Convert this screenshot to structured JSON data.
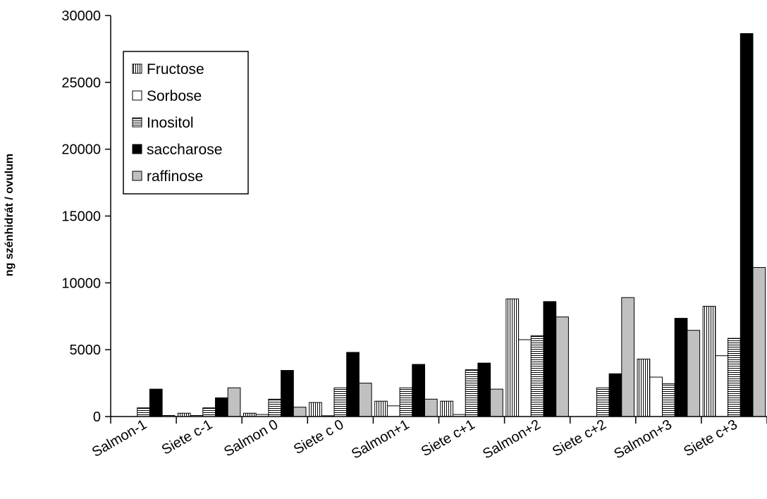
{
  "chart_data": {
    "type": "bar",
    "title": "",
    "xlabel": "",
    "ylabel": "ng szénhidrát / ovulum",
    "ylim": [
      0,
      30000
    ],
    "yticks": [
      0,
      5000,
      10000,
      15000,
      20000,
      25000,
      30000
    ],
    "grid": false,
    "legend_position": "top-left",
    "categories": [
      "Salmon-1",
      "Siete c-1",
      "Salmon 0",
      "Siete c 0",
      "Salmon+1",
      "Siete c+1",
      "Salmon+2",
      "Siete c+2",
      "Salmon+3",
      "Siete c+3"
    ],
    "series": [
      {
        "name": "Fructose",
        "pattern": "vertical-lines",
        "color": "#ffffff",
        "values": [
          0,
          250,
          250,
          1050,
          1150,
          1150,
          8800,
          0,
          4300,
          8250
        ]
      },
      {
        "name": "Sorbose",
        "pattern": "solid",
        "color": "#ffffff",
        "values": [
          0,
          80,
          150,
          60,
          800,
          150,
          5750,
          0,
          2950,
          4550
        ]
      },
      {
        "name": "Inositol",
        "pattern": "horizontal-lines",
        "color": "#ffffff",
        "values": [
          650,
          650,
          1300,
          2150,
          2150,
          3500,
          6050,
          2150,
          2450,
          5850
        ]
      },
      {
        "name": "saccharose",
        "pattern": "solid",
        "color": "#000000",
        "values": [
          2050,
          1400,
          3450,
          4800,
          3900,
          4000,
          8600,
          3200,
          7350,
          28650
        ]
      },
      {
        "name": "raffinose",
        "pattern": "solid",
        "color": "#c0c0c0",
        "values": [
          80,
          2150,
          700,
          2500,
          1300,
          2050,
          7450,
          8900,
          6450,
          11150
        ]
      }
    ]
  }
}
